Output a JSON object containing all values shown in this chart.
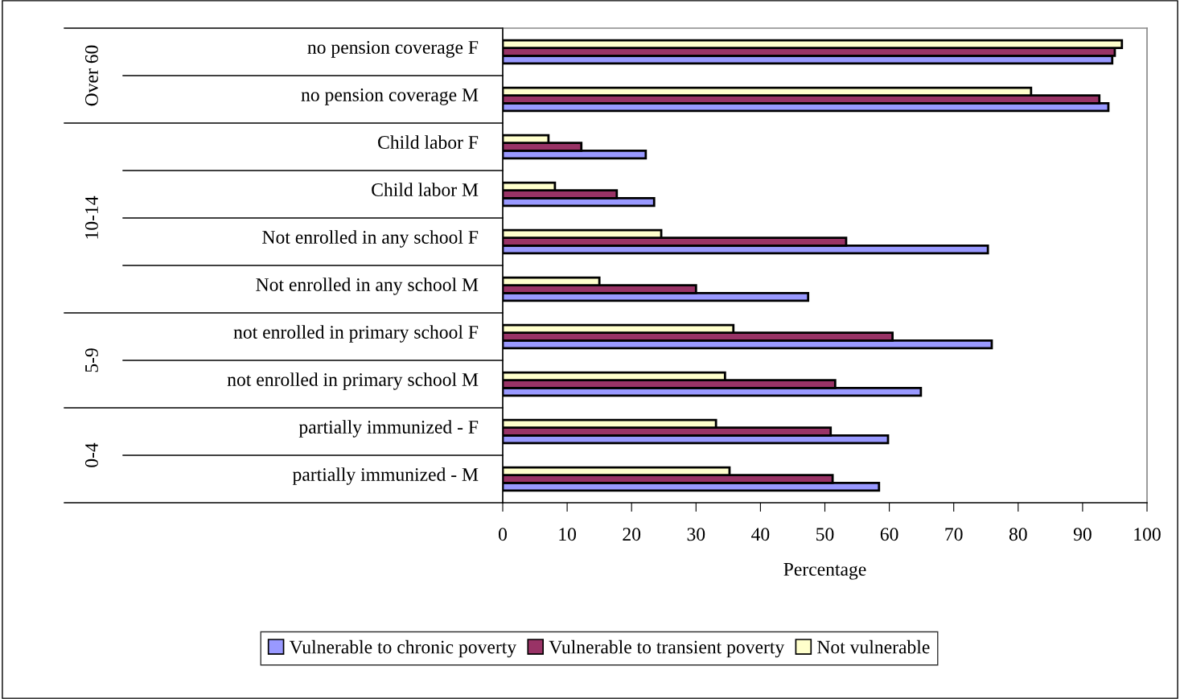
{
  "chart_data": {
    "type": "bar",
    "orientation": "horizontal",
    "xlabel": "Percentage",
    "categories": [
      "no pension coverage F",
      "no pension coverage M",
      "Child labor F",
      "Child labor M",
      "Not enrolled in any school F",
      "Not enrolled in any school M",
      "not enrolled in primary school F",
      "not enrolled in primary school M",
      "partially immunized - F",
      "partially immunized - M"
    ],
    "series": [
      {
        "name": "Vulnerable to chronic poverty",
        "color": "#9999ff",
        "values": [
          94.6,
          94.0,
          22.2,
          23.5,
          75.3,
          47.4,
          75.9,
          64.9,
          59.8,
          58.4
        ]
      },
      {
        "name": "Vulnerable to transient poverty",
        "color": "#993366",
        "values": [
          95.0,
          92.6,
          12.2,
          17.7,
          53.3,
          30.0,
          60.5,
          51.6,
          50.9,
          51.2
        ]
      },
      {
        "name": "Not vulnerable",
        "color": "#ffffcc",
        "values": [
          96.1,
          82.0,
          7.1,
          8.1,
          24.6,
          15.0,
          35.8,
          34.5,
          33.1,
          35.2
        ]
      }
    ],
    "annotations": [
      "Over 60",
      "10-14",
      "5-9",
      "0-4"
    ],
    "xlim": [
      0,
      100
    ],
    "xticks": [
      0,
      10,
      20,
      30,
      40,
      50,
      60,
      70,
      80,
      90,
      100
    ],
    "grid": false,
    "legend": "bottom"
  }
}
